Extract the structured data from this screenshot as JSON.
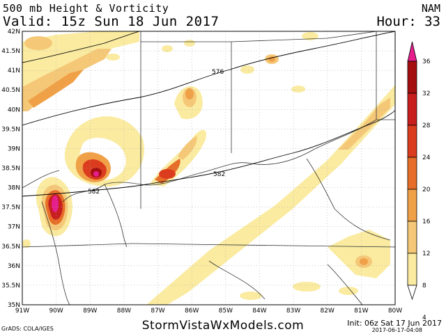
{
  "header": {
    "title": "500 mb Height & Vorticity",
    "model": "NAM",
    "valid": "Valid: 15z Sun 18 Jun 2017",
    "hour": "Hour: 33"
  },
  "footer": {
    "grads": "GrADS: COLA/IGES",
    "credit": "StormVistaWxModels.com",
    "init": "Init: 06z Sat 17 Jun 2017",
    "stamp": "2017-06-17-04:08"
  },
  "map": {
    "lat_labels": [
      "42N",
      "41.5N",
      "41N",
      "40.5N",
      "40N",
      "39.5N",
      "39N",
      "38.5N",
      "38N",
      "37.5N",
      "37N",
      "36.5N",
      "36N",
      "35.5N",
      "35N"
    ],
    "lon_labels": [
      "91W",
      "90W",
      "89W",
      "88W",
      "87W",
      "86W",
      "85W",
      "84W",
      "83W",
      "82W",
      "81W",
      "80W"
    ],
    "contour_labels": [
      "576",
      "582",
      "582"
    ]
  },
  "colorbar": {
    "labels": [
      "36",
      "32",
      "28",
      "24",
      "20",
      "16",
      "12",
      "8",
      "4"
    ],
    "colors": [
      "#e61e8c",
      "#a50f0f",
      "#c81e1e",
      "#dc3c1e",
      "#e66e28",
      "#f0a046",
      "#f5c878",
      "#faeba0"
    ]
  },
  "palette": {
    "v4": "#faeba0",
    "v8": "#f5c878",
    "v12": "#f0a046",
    "v16": "#e66e28",
    "v20": "#dc3c1e",
    "v24": "#c81e1e",
    "v28": "#a50f0f",
    "v36": "#e61e8c"
  }
}
